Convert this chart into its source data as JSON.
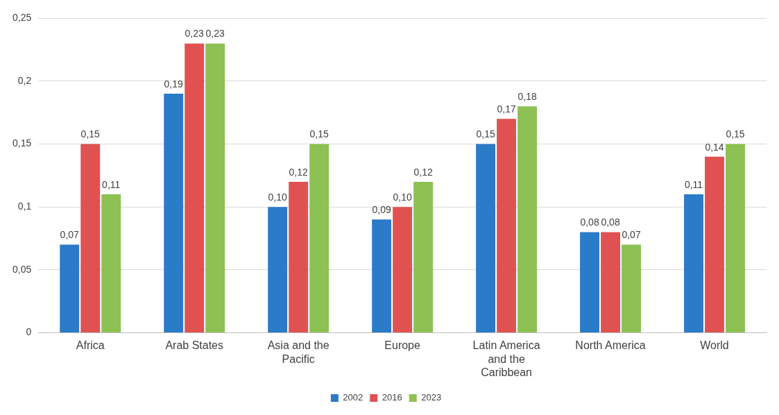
{
  "chart_data": {
    "type": "bar",
    "categories": [
      "Africa",
      "Arab States",
      "Asia and the Pacific",
      "Europe",
      "Latin America and the Caribbean",
      "North America",
      "World"
    ],
    "series": [
      {
        "name": "2002",
        "color": "#2a7bc8",
        "values": [
          0.07,
          0.19,
          0.1,
          0.09,
          0.15,
          0.08,
          0.11
        ],
        "value_labels": [
          "0,07",
          "0,19",
          "0,10",
          "0,09",
          "0,15",
          "0,08",
          "0,11"
        ]
      },
      {
        "name": "2016",
        "color": "#e05252",
        "values": [
          0.15,
          0.23,
          0.12,
          0.1,
          0.17,
          0.08,
          0.14
        ],
        "value_labels": [
          "0,15",
          "0,23",
          "0,12",
          "0,10",
          "0,17",
          "0,08",
          "0,14"
        ]
      },
      {
        "name": "2023",
        "color": "#8dc153",
        "values": [
          0.11,
          0.23,
          0.15,
          0.12,
          0.18,
          0.07,
          0.15
        ],
        "value_labels": [
          "0,11",
          "0,23",
          "0,15",
          "0,12",
          "0,18",
          "0,07",
          "0,15"
        ]
      }
    ],
    "ylim": [
      0,
      0.25
    ],
    "yticks": [
      0,
      {
        "value": 0.05,
        "label": "0,05"
      },
      {
        "value": 0.1,
        "label": "0,1"
      },
      {
        "value": 0.15,
        "label": "0,15"
      },
      {
        "value": 0.2,
        "label": "0,2"
      },
      {
        "value": 0.25,
        "label": "0,25"
      }
    ],
    "grid": "y",
    "legend": "bottom"
  }
}
